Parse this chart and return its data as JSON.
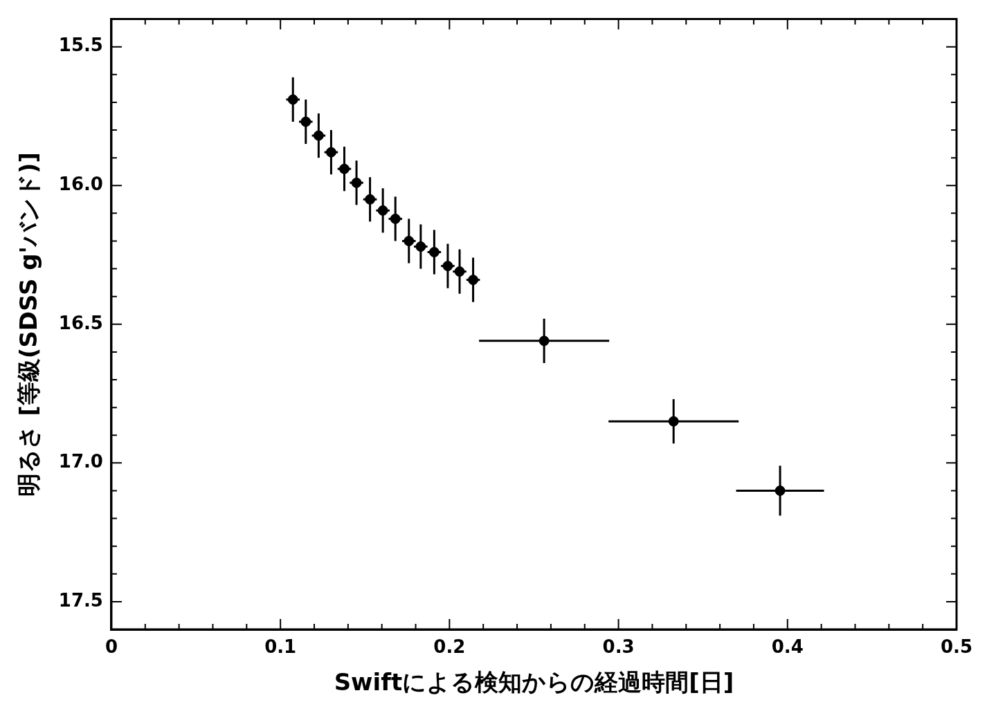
{
  "chart_data": {
    "type": "scatter",
    "xlabel": "Swiftによる検知からの経過時間[日]",
    "ylabel": "明るさ [等級(SDSS g'バンド)]",
    "x": [
      0.1074,
      0.115,
      0.1226,
      0.13,
      0.1378,
      0.145,
      0.153,
      0.1606,
      0.168,
      0.176,
      0.183,
      0.191,
      0.199,
      0.206,
      0.214,
      0.256,
      0.3326,
      0.3956
    ],
    "series": [
      {
        "color": "#000000",
        "values": [
          15.69,
          15.77,
          15.82,
          15.88,
          15.94,
          15.99,
          16.05,
          16.09,
          16.12,
          16.2,
          16.22,
          16.24,
          16.29,
          16.31,
          16.34,
          16.56,
          16.85,
          17.1
        ],
        "errors": [
          0.08,
          0.08,
          0.08,
          0.08,
          0.08,
          0.08,
          0.08,
          0.08,
          0.08,
          0.08,
          0.08,
          0.08,
          0.08,
          0.08,
          0.08,
          0.08,
          0.08,
          0.09
        ],
        "xerrors": [
          0.004,
          0.004,
          0.004,
          0.004,
          0.004,
          0.004,
          0.004,
          0.004,
          0.004,
          0.004,
          0.004,
          0.004,
          0.004,
          0.004,
          0.004,
          0.0385,
          0.0385,
          0.026
        ]
      }
    ],
    "marker": "circle",
    "xlim": [
      0,
      0.5
    ],
    "xticks": [
      0,
      {
        "value": 0.02,
        "label": null
      },
      {
        "value": 0.04,
        "label": null
      },
      {
        "value": 0.06,
        "label": null
      },
      {
        "value": 0.08,
        "label": null
      },
      0.1,
      {
        "value": 0.12,
        "label": null
      },
      {
        "value": 0.14,
        "label": null
      },
      {
        "value": 0.16,
        "label": null
      },
      {
        "value": 0.18,
        "label": null
      },
      0.2,
      {
        "value": 0.22,
        "label": null
      },
      {
        "value": 0.24,
        "label": null
      },
      {
        "value": 0.26,
        "label": null
      },
      {
        "value": 0.28,
        "label": null
      },
      0.3,
      {
        "value": 0.32,
        "label": null
      },
      {
        "value": 0.34,
        "label": null
      },
      {
        "value": 0.36,
        "label": null
      },
      {
        "value": 0.38,
        "label": null
      },
      0.4,
      {
        "value": 0.42,
        "label": null
      },
      {
        "value": 0.44,
        "label": null
      },
      {
        "value": 0.46,
        "label": null
      },
      {
        "value": 0.48,
        "label": null
      },
      0.5
    ],
    "ylim": [
      17.6,
      15.4
    ],
    "yticks": [
      15.5,
      {
        "value": 15.6,
        "label": null
      },
      {
        "value": 15.7,
        "label": null
      },
      {
        "value": 15.8,
        "label": null
      },
      {
        "value": 15.9,
        "label": null
      },
      {
        "value": 16,
        "label": "16.0"
      },
      {
        "value": 16.1,
        "label": null
      },
      {
        "value": 16.2,
        "label": null
      },
      {
        "value": 16.3,
        "label": null
      },
      {
        "value": 16.4,
        "label": null
      },
      16.5,
      {
        "value": 16.6,
        "label": null
      },
      {
        "value": 16.7,
        "label": null
      },
      {
        "value": 16.8,
        "label": null
      },
      {
        "value": 16.9,
        "label": null
      },
      {
        "value": 17,
        "label": "17.0"
      },
      {
        "value": 17.1,
        "label": null
      },
      {
        "value": 17.2,
        "label": null
      },
      {
        "value": 17.3,
        "label": null
      },
      {
        "value": 17.4,
        "label": null
      },
      17.5
    ],
    "legend": false,
    "grid": false
  }
}
